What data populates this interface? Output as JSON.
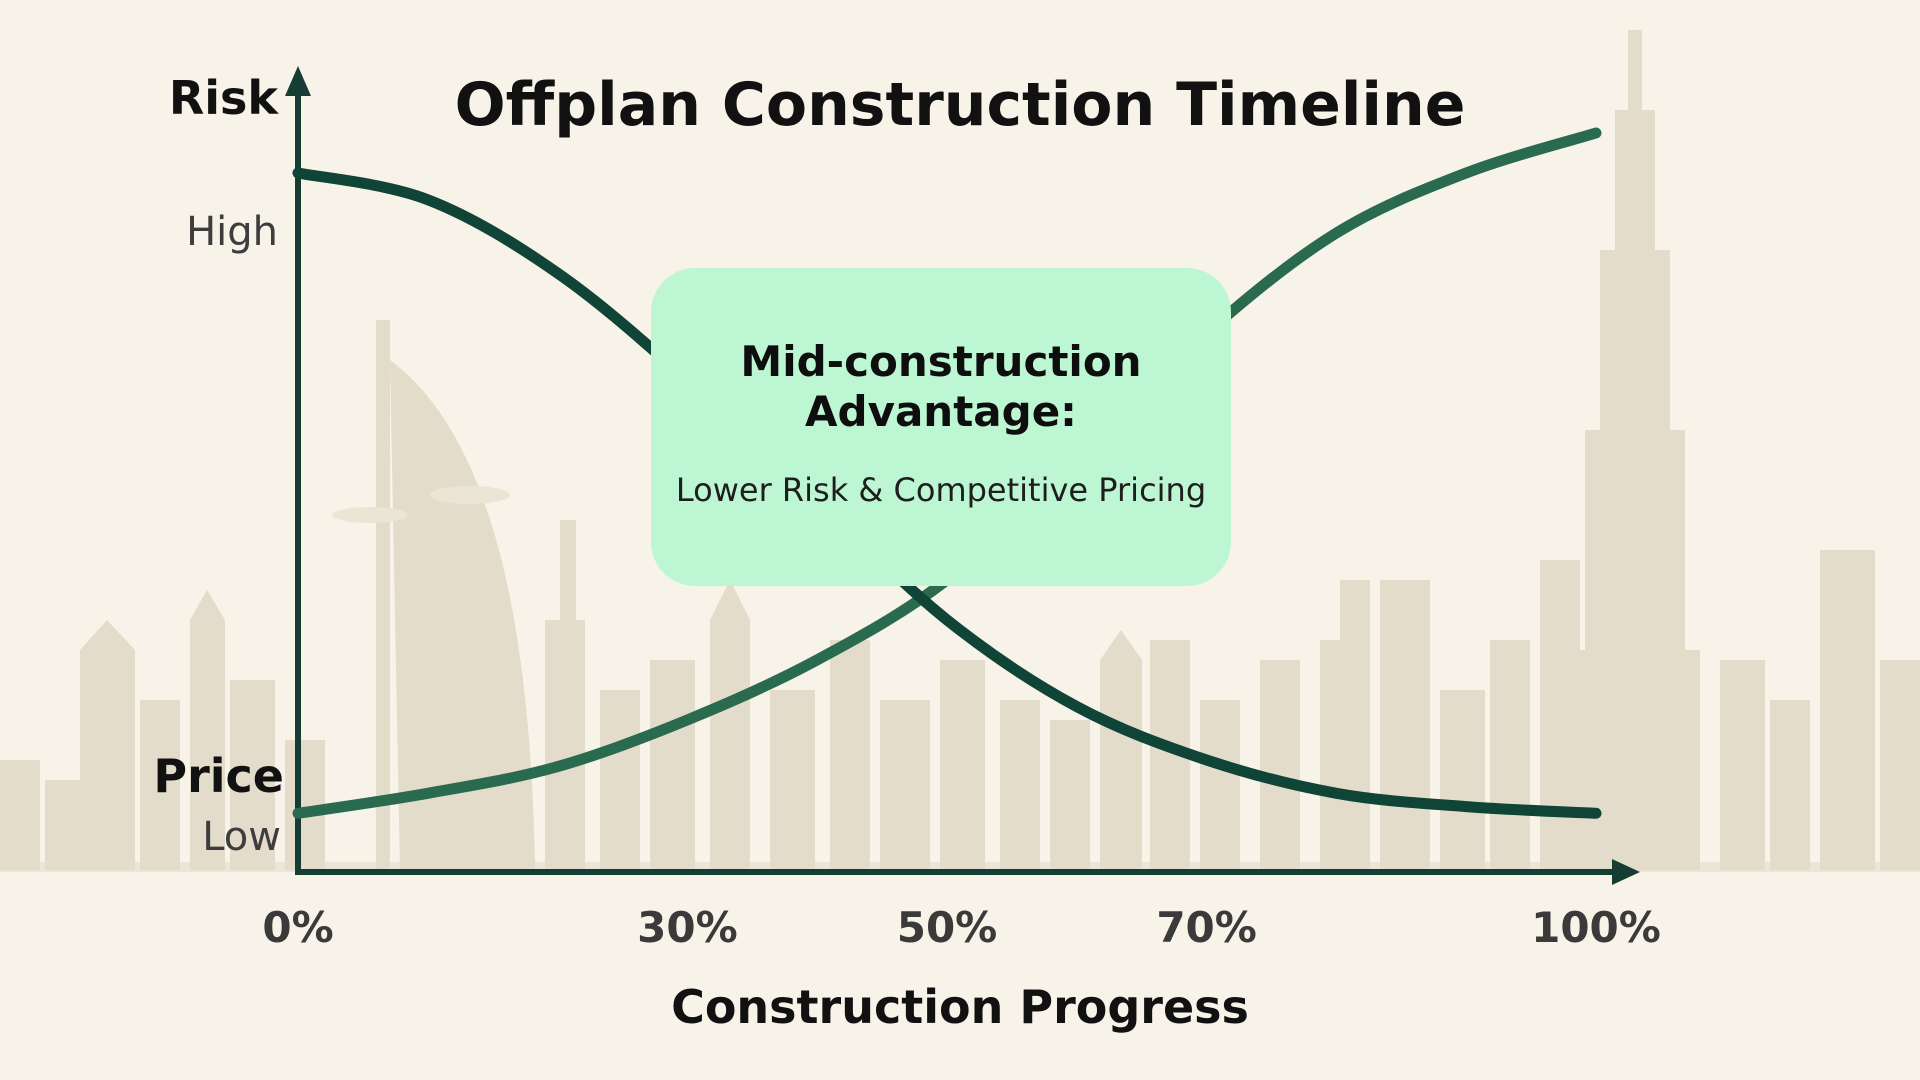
{
  "chart_data": {
    "type": "line",
    "title": "Offplan Construction Timeline",
    "xlabel": "Construction Progress",
    "y_axis_labels": {
      "risk": "Risk",
      "price": "Price"
    },
    "y_levels": {
      "high": "High",
      "low": "Low"
    },
    "x": [
      0,
      10,
      20,
      30,
      40,
      50,
      60,
      70,
      80,
      90,
      100
    ],
    "x_tick_values": [
      0,
      30,
      50,
      70,
      100
    ],
    "x_tick_labels": [
      "0%",
      "30%",
      "50%",
      "70%",
      "100%"
    ],
    "xlim": [
      0,
      100
    ],
    "ylim": [
      0,
      100
    ],
    "grid": false,
    "legend": "none",
    "series": [
      {
        "key": "risk",
        "values": [
          100,
          96,
          85,
          69,
          51,
          33,
          20,
          12,
          7,
          5,
          4
        ],
        "color": "#0f4436"
      },
      {
        "key": "price",
        "values": [
          4,
          7,
          11,
          18,
          27,
          39,
          57,
          76,
          91,
          100,
          106
        ],
        "color": "#2a6b50"
      }
    ],
    "annotation": {
      "title": "Mid-construction Advantage:",
      "text": "Lower Risk & Competitive Pricing",
      "background": "#bdf6d2"
    }
  },
  "colors": {
    "background": "#f7f3e8",
    "axis": "#153d33",
    "skyline": "#e3dcca"
  }
}
